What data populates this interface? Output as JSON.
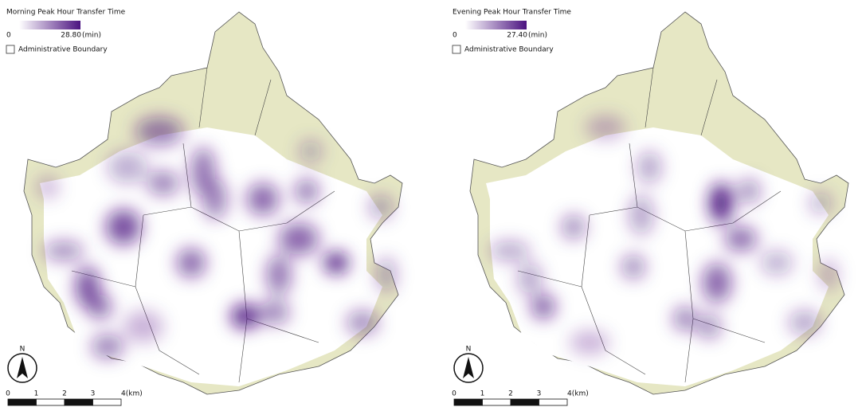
{
  "panels": [
    {
      "title": "Morning Peak Hour Transfer Time",
      "legend": {
        "min": "0",
        "max": "28.80",
        "unit": "(min)"
      },
      "boundary_label": "Administrative Boundary",
      "north": "N",
      "scale": [
        "0",
        "1",
        "2",
        "3",
        "4(km)"
      ]
    },
    {
      "title": "Evening Peak Hour Transfer Time",
      "legend": {
        "min": "0",
        "max": "27.40",
        "unit": "(min)"
      },
      "boundary_label": "Administrative Boundary",
      "north": "N",
      "scale": [
        "0",
        "1",
        "2",
        "3",
        "4(km)"
      ]
    }
  ]
}
